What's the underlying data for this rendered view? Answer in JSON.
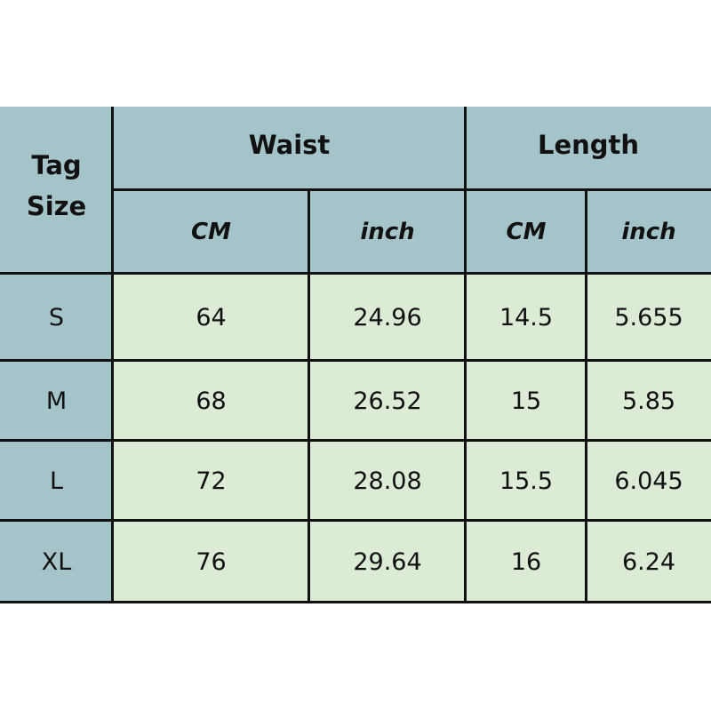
{
  "header": {
    "tag_size": "Tag Size",
    "waist": "Waist",
    "length": "Length",
    "waist_cm": "CM",
    "waist_inch": "inch",
    "length_cm": "CM",
    "length_inch": "inch"
  },
  "rows": [
    {
      "size": "S",
      "waist_cm": "64",
      "waist_inch": "24.96",
      "length_cm": "14.5",
      "length_inch": "5.655"
    },
    {
      "size": "M",
      "waist_cm": "68",
      "waist_inch": "26.52",
      "length_cm": "15",
      "length_inch": "5.85"
    },
    {
      "size": "L",
      "waist_cm": "72",
      "waist_inch": "28.08",
      "length_cm": "15.5",
      "length_inch": "6.045"
    },
    {
      "size": "XL",
      "waist_cm": "76",
      "waist_inch": "29.64",
      "length_cm": "16",
      "length_inch": "6.24"
    }
  ],
  "colors": {
    "header": "#a4c4c9",
    "body": "#dcebd5"
  }
}
